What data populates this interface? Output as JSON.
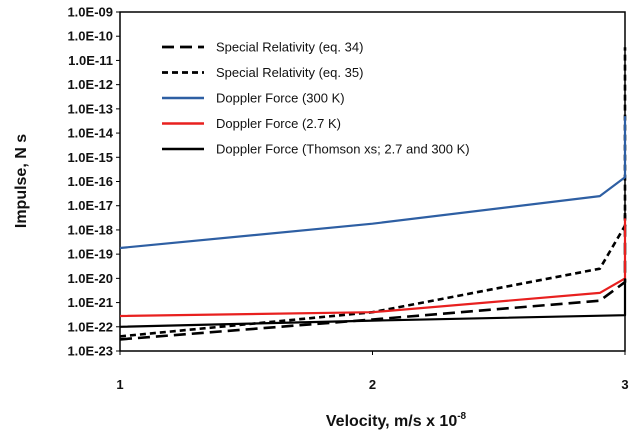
{
  "chart_data": {
    "type": "line",
    "xlabel": "Velocity, m/s x 10",
    "xlabel_exponent": "-8",
    "ylabel": "Impulse, N s",
    "xlim": [
      1,
      3
    ],
    "ylim": [
      1e-23,
      1e-09
    ],
    "y_scale": "log",
    "grid": false,
    "legend_position": "top-left",
    "x_ticks": [
      "1",
      "2",
      "3"
    ],
    "y_ticks": [
      "1.0E-09",
      "1.0E-10",
      "1.0E-11",
      "1.0E-12",
      "1.0E-13",
      "1.0E-14",
      "1.0E-15",
      "1.0E-16",
      "1.0E-17",
      "1.0E-18",
      "1.0E-19",
      "1.0E-20",
      "1.0E-21",
      "1.0E-22",
      "1.0E-23"
    ],
    "series": [
      {
        "name": "Special Relativity (eq. 34)",
        "color": "#000000",
        "dash": "long-dash",
        "x": [
          1,
          2,
          2.9,
          3,
          3
        ],
        "y": [
          3e-23,
          2e-22,
          1.2e-21,
          7e-21,
          5e-18
        ]
      },
      {
        "name": "Special Relativity (eq. 35)",
        "color": "#000000",
        "dash": "short-dash",
        "x": [
          1,
          2,
          2.9,
          3,
          3
        ],
        "y": [
          4e-23,
          4e-22,
          2.5e-20,
          1.5e-18,
          3.5e-11
        ]
      },
      {
        "name": "Doppler Force (300 K)",
        "color": "#2e5fa3",
        "dash": "solid",
        "x": [
          1,
          2,
          2.9,
          3,
          3
        ],
        "y": [
          1.8e-19,
          1.8e-18,
          2.5e-17,
          1.5e-16,
          5e-14
        ]
      },
      {
        "name": "Doppler Force (2.7 K)",
        "color": "#e8201f",
        "dash": "solid",
        "x": [
          1,
          2,
          2.9,
          3,
          3
        ],
        "y": [
          2.8e-22,
          4e-22,
          2.5e-21,
          1e-20,
          3e-18
        ]
      },
      {
        "name": "Doppler Force (Thomson xs; 2.7 and 300 K)",
        "color": "#000000",
        "dash": "solid",
        "x": [
          1,
          2,
          3,
          3
        ],
        "y": [
          1e-22,
          1.8e-22,
          3e-22,
          1e-20
        ]
      }
    ]
  }
}
